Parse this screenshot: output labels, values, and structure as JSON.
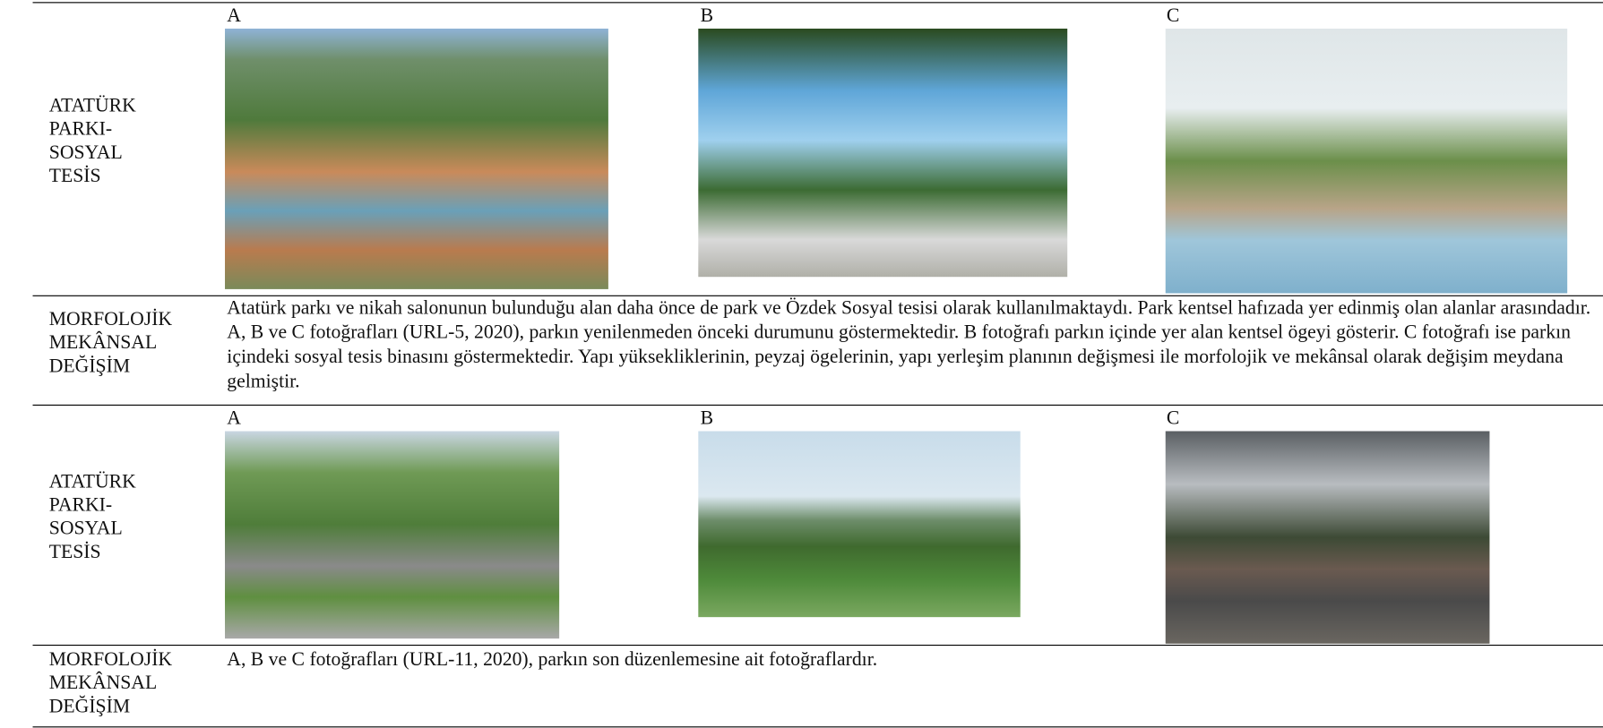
{
  "table": {
    "rows": [
      {
        "label": [
          "ATATÜRK",
          "PARKI-",
          "SOSYAL",
          "TESİS"
        ],
        "photos": [
          "A",
          "B",
          "C"
        ]
      },
      {
        "label": [
          "MORFOLOJİK",
          "MEKÂNSAL",
          "DEĞİŞİM"
        ],
        "text": "Atatürk parkı ve nikah salonunun bulunduğu alan daha önce de park ve Özdek Sosyal tesisi olarak kullanılmaktaydı. Park kentsel hafızada yer edinmiş olan alanlar arasındadır. A, B ve C fotoğrafları (URL-5, 2020), parkın yenilenmeden önceki durumunu göstermektedir. B fotoğrafı parkın içinde yer alan kentsel ögeyi gösterir. C fotoğrafı ise parkın içindeki sosyal tesis binasını göstermektedir. Yapı yüksekliklerinin, peyzaj ögelerinin, yapı yerleşim planının değişmesi ile morfolojik ve mekânsal olarak değişim meydana gelmiştir."
      },
      {
        "label": [
          "ATATÜRK",
          "PARKI-",
          "SOSYAL",
          "TESİS"
        ],
        "photos": [
          "A",
          "B",
          "C"
        ]
      },
      {
        "label": [
          "MORFOLOJİK",
          "MEKÂNSAL",
          "DEĞİŞİM"
        ],
        "text": "A, B ve C fotoğrafları (URL-11, 2020), parkın son düzenlemesine ait fotoğraflardır."
      }
    ]
  }
}
